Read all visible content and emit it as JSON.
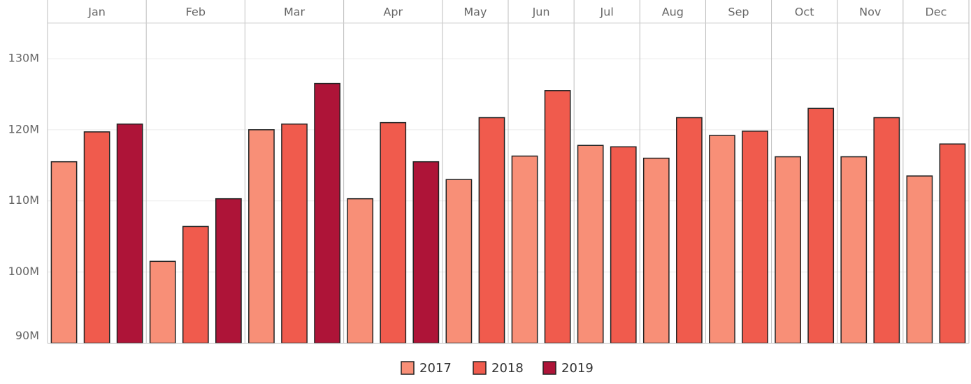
{
  "chart_data": {
    "type": "bar",
    "categories": [
      "Jan",
      "Feb",
      "Mar",
      "Apr",
      "May",
      "Jun",
      "Jul",
      "Aug",
      "Sep",
      "Oct",
      "Nov",
      "Dec"
    ],
    "series": [
      {
        "name": "2017",
        "color": "#f88f77",
        "values": [
          115.5,
          101.5,
          120.0,
          110.3,
          113.0,
          116.3,
          117.8,
          116.0,
          119.2,
          116.2,
          116.2,
          113.5
        ]
      },
      {
        "name": "2018",
        "color": "#f05b4d",
        "values": [
          119.7,
          106.4,
          120.8,
          121.0,
          121.7,
          125.5,
          117.6,
          121.7,
          119.8,
          123.0,
          121.7,
          118.0
        ]
      },
      {
        "name": "2019",
        "color": "#ae1438",
        "values": [
          120.8,
          110.3,
          126.5,
          115.5,
          null,
          null,
          null,
          null,
          null,
          null,
          null,
          null
        ]
      }
    ],
    "ylim": [
      90,
      135
    ],
    "yticks": [
      {
        "value": 90,
        "label": "90M"
      },
      {
        "value": 100,
        "label": "100M"
      },
      {
        "value": 110,
        "label": "110M"
      },
      {
        "value": 120,
        "label": "120M"
      },
      {
        "value": 130,
        "label": "130M"
      }
    ],
    "grid": true,
    "legend": "bottom"
  }
}
